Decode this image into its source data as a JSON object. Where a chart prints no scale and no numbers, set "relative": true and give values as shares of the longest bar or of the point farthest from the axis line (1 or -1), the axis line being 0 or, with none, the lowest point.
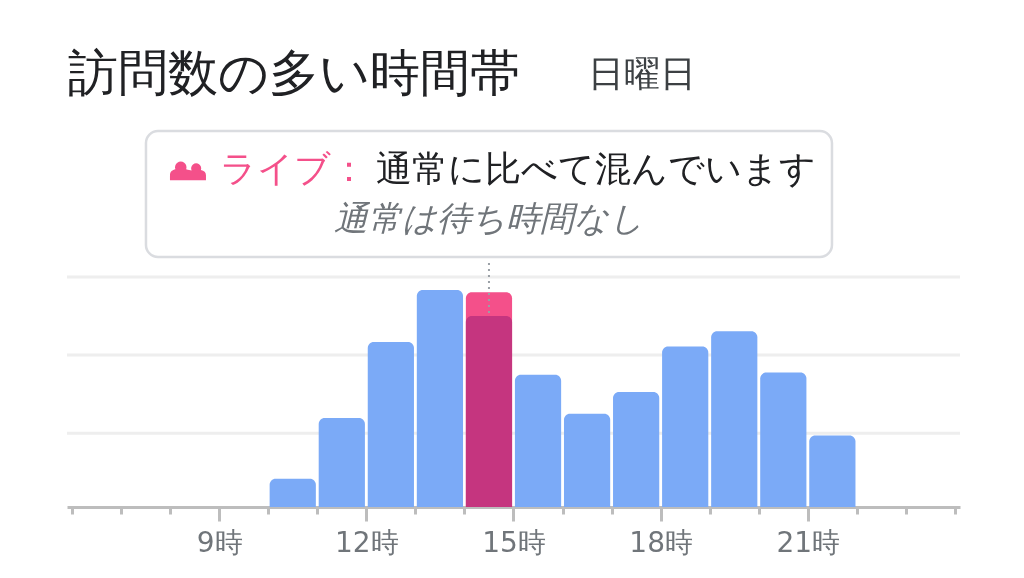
{
  "chart_data": {
    "type": "bar",
    "title": "訪問数の多い時間帯",
    "subtitle": "日曜日",
    "annotations": [
      "通常に比べて混んでいます",
      "通常は待ち時間なし"
    ],
    "x": [
      10.5,
      11.5,
      12.5,
      13.5,
      14.5,
      15.5,
      16.5,
      17.5,
      18.5,
      19.5,
      20.5,
      21.5
    ],
    "series": [
      {
        "name": "ライブ：",
        "color": "#f4508a",
        "values": [
          null,
          null,
          null,
          null,
          0.99,
          null,
          null,
          null,
          null,
          null,
          null,
          null
        ]
      },
      {
        "colors": [
          "#7baaf7",
          "#7baaf7",
          "#7baaf7",
          "#7baaf7",
          "#c5357f",
          "#7baaf7",
          "#7baaf7",
          "#7baaf7",
          "#7baaf7",
          "#7baaf7",
          "#7baaf7",
          "#7baaf7"
        ],
        "values": [
          0.13,
          0.41,
          0.76,
          1.0,
          0.88,
          0.61,
          0.43,
          0.53,
          0.74,
          0.81,
          0.62,
          0.33
        ]
      }
    ],
    "relative": true,
    "xlim": [
      6,
      24
    ],
    "xticks": [
      {
        "value": 6,
        "label": null
      },
      {
        "value": 7,
        "label": null
      },
      {
        "value": 8,
        "label": null
      },
      {
        "value": 9,
        "label": "9時"
      },
      {
        "value": 10,
        "label": null
      },
      {
        "value": 11,
        "label": null
      },
      {
        "value": 12,
        "label": "12時"
      },
      {
        "value": 13,
        "label": null
      },
      {
        "value": 14,
        "label": null
      },
      {
        "value": 15,
        "label": "15時"
      },
      {
        "value": 16,
        "label": null
      },
      {
        "value": 17,
        "label": null
      },
      {
        "value": 18,
        "label": "18時"
      },
      {
        "value": 19,
        "label": null
      },
      {
        "value": 20,
        "label": null
      },
      {
        "value": 21,
        "label": "21時"
      },
      {
        "value": 22,
        "label": null
      },
      {
        "value": 23,
        "label": null
      },
      {
        "value": 24,
        "label": null
      }
    ],
    "ref_lines": [
      {
        "axis": "y",
        "value": 0.34,
        "color": "#eeeeee"
      },
      {
        "axis": "y",
        "value": 0.7,
        "color": "#eeeeee"
      },
      {
        "axis": "y",
        "value": 1.06,
        "color": "#eeeeee"
      },
      {
        "axis": "x",
        "value": 14.5,
        "color": "#9aa0a6",
        "line_style": "dotted"
      }
    ],
    "tick_labels": "x"
  }
}
